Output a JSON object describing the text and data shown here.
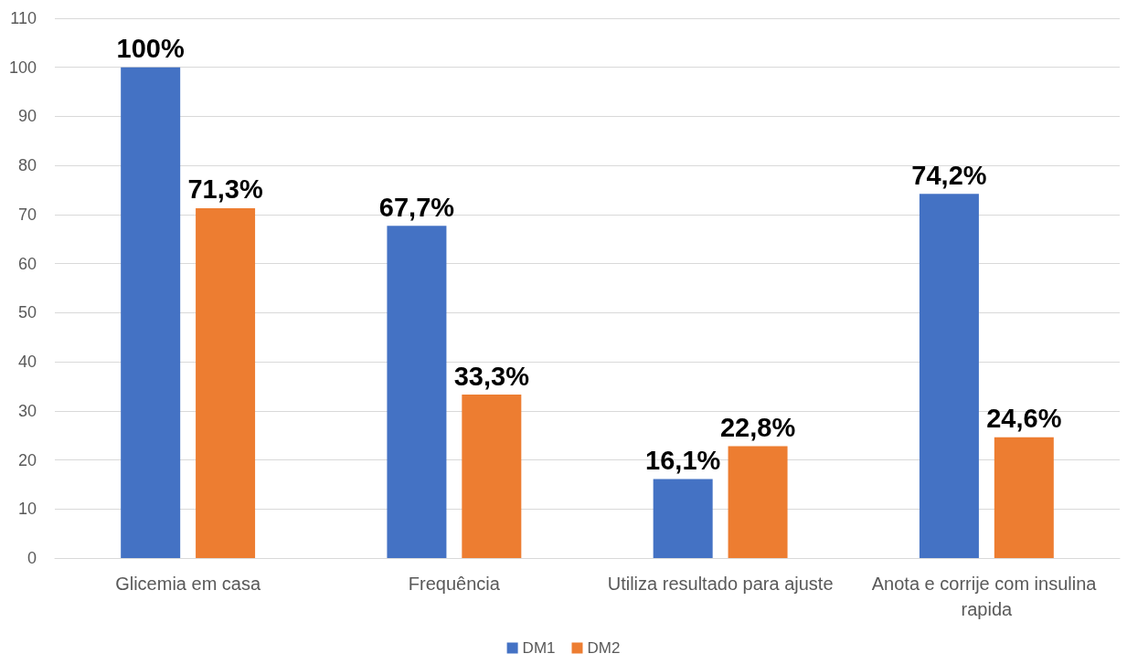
{
  "chart_data": {
    "type": "bar",
    "categories": [
      "Glicemia em casa",
      "Frequência",
      "Utiliza resultado para ajuste",
      "Anota e corrije com insulina rapida"
    ],
    "series": [
      {
        "name": "DM1",
        "color": "#4472c4",
        "values": [
          100,
          67.7,
          16.1,
          74.2
        ],
        "value_labels": [
          "100%",
          "67,7%",
          "16,1%",
          "74,2%"
        ]
      },
      {
        "name": "DM2",
        "color": "#ed7d31",
        "values": [
          71.3,
          33.3,
          22.8,
          24.6
        ],
        "value_labels": [
          "71,3%",
          "33,3%",
          "22,8%",
          "24,6%"
        ]
      }
    ],
    "ylim": [
      0,
      110
    ],
    "yticks": [
      0,
      10,
      20,
      30,
      40,
      50,
      60,
      70,
      80,
      90,
      100,
      110
    ],
    "grid": "y",
    "legend": "bottom"
  }
}
